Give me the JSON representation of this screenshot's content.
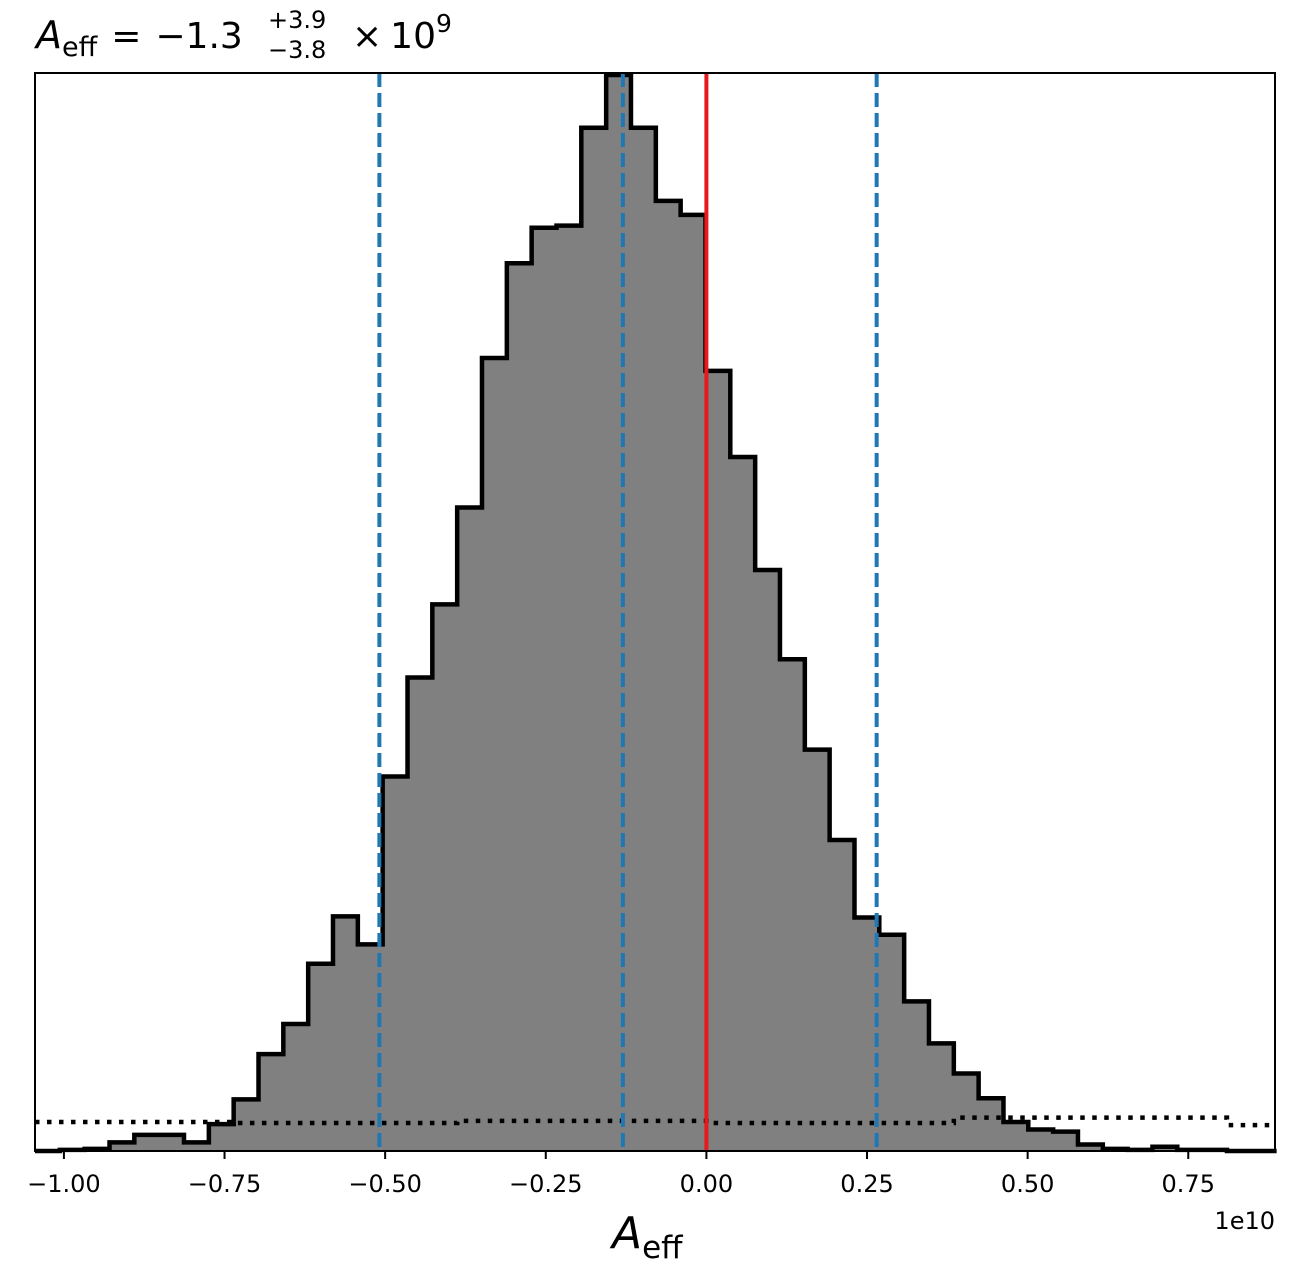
{
  "chart_data": {
    "type": "histogram",
    "title": {
      "symbol": "A",
      "symbol_sub": "eff",
      "equals": "=",
      "value": "−1.3",
      "err_plus": "+3.9",
      "err_minus": "−3.8",
      "times": "×",
      "power_base": "10",
      "power_exp": "9"
    },
    "xlabel": {
      "symbol": "A",
      "symbol_sub": "eff"
    },
    "x_offset_label": "1e10",
    "xlim": [
      -1.045,
      0.885
    ],
    "ylim": [
      0,
      1.0
    ],
    "xticks": [
      {
        "value": -1.0,
        "label": "−1.00"
      },
      {
        "value": -0.75,
        "label": "−0.75"
      },
      {
        "value": -0.5,
        "label": "−0.50"
      },
      {
        "value": -0.25,
        "label": "−0.25"
      },
      {
        "value": 0.0,
        "label": "0.00"
      },
      {
        "value": 0.25,
        "label": "0.25"
      },
      {
        "value": 0.5,
        "label": "0.50"
      },
      {
        "value": 0.75,
        "label": "0.75"
      }
    ],
    "bin_edges": [
      -1.045,
      -1.0063,
      -0.9677,
      -0.929,
      -0.8904,
      -0.8517,
      -0.8131,
      -0.7744,
      -0.7358,
      -0.6971,
      -0.6585,
      -0.6198,
      -0.5812,
      -0.5425,
      -0.5039,
      -0.4652,
      -0.4266,
      -0.3879,
      -0.3493,
      -0.3106,
      -0.272,
      -0.2333,
      -0.1947,
      -0.156,
      -0.1174,
      -0.0787,
      -0.0401,
      -0.0014,
      0.0372,
      0.0759,
      0.1145,
      0.1532,
      0.1918,
      0.2305,
      0.2691,
      0.3078,
      0.3464,
      0.3851,
      0.4237,
      0.4624,
      0.501,
      0.5397,
      0.5783,
      0.617,
      0.6556,
      0.6943,
      0.7329,
      0.7716,
      0.8102,
      0.8489,
      0.8875
    ],
    "counts": [
      0.0,
      0.001,
      0.002,
      0.008,
      0.015,
      0.015,
      0.008,
      0.025,
      0.048,
      0.09,
      0.118,
      0.174,
      0.218,
      0.192,
      0.348,
      0.44,
      0.508,
      0.598,
      0.737,
      0.825,
      0.858,
      0.86,
      0.951,
      1.0,
      0.951,
      0.883,
      0.87,
      0.725,
      0.645,
      0.54,
      0.457,
      0.373,
      0.289,
      0.217,
      0.201,
      0.139,
      0.1,
      0.072,
      0.049,
      0.027,
      0.02,
      0.018,
      0.006,
      0.002,
      0.001,
      0.004,
      0.001,
      0.001,
      0.0,
      0.0
    ],
    "prior_dotted": [
      {
        "x0": -1.045,
        "x1": -0.7358,
        "y": 0.027
      },
      {
        "x0": -0.7358,
        "x1": -0.3879,
        "y": 0.026
      },
      {
        "x0": -0.3879,
        "x1": 0.0,
        "y": 0.028
      },
      {
        "x0": 0.0,
        "x1": 0.3851,
        "y": 0.026
      },
      {
        "x0": 0.3851,
        "x1": 0.8102,
        "y": 0.031
      },
      {
        "x0": 0.8102,
        "x1": 0.885,
        "y": 0.024
      }
    ],
    "quantile_lines": [
      -0.509,
      -0.13,
      0.265
    ],
    "truth_line": 0.0,
    "colors": {
      "fill": "#808080",
      "edge": "#000000",
      "quantile": "#1f77b4",
      "truth": "#e41a1c",
      "background": "#ffffff"
    },
    "grid": false,
    "legend": "none"
  }
}
